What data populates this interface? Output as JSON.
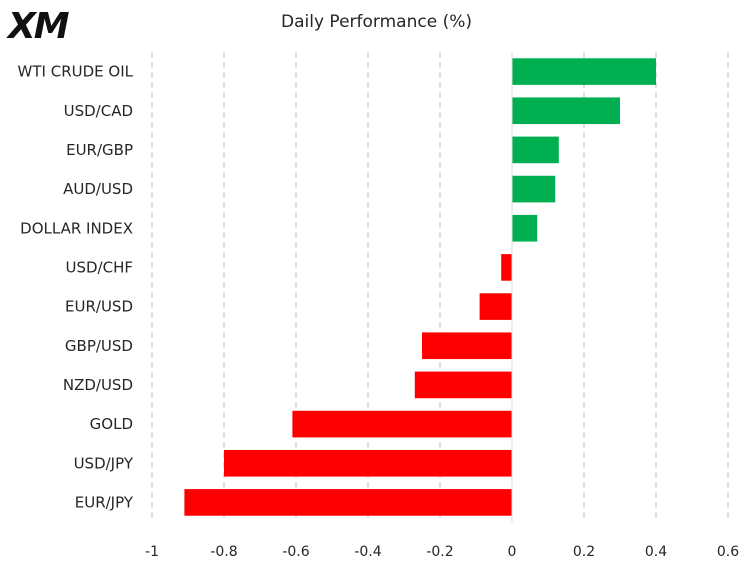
{
  "logo_text": "XM",
  "chart_data": {
    "type": "bar",
    "orientation": "horizontal",
    "title": "Daily Performance  (%)",
    "categories": [
      "WTI CRUDE OIL",
      "USD/CAD",
      "EUR/GBP",
      "AUD/USD",
      "DOLLAR INDEX",
      "USD/CHF",
      "EUR/USD",
      "GBP/USD",
      "NZD/USD",
      "GOLD",
      "USD/JPY",
      "EUR/JPY"
    ],
    "values": [
      0.4,
      0.3,
      0.13,
      0.12,
      0.07,
      -0.03,
      -0.09,
      -0.25,
      -0.27,
      -0.61,
      -0.8,
      -0.91
    ],
    "xlim": [
      -1,
      0.6
    ],
    "xticks": [
      "-1",
      "-0.8",
      "-0.6",
      "-0.4",
      "-0.2",
      "0",
      "0.2",
      "0.4",
      "0.6"
    ],
    "xtick_values": [
      -1,
      -0.8,
      -0.6,
      -0.4,
      -0.2,
      0,
      0.2,
      0.4,
      0.6
    ],
    "grid": "vertical dashed",
    "colors": {
      "positive": "#00b050",
      "negative": "#ff0000",
      "grid": "#bfbfbf"
    }
  }
}
